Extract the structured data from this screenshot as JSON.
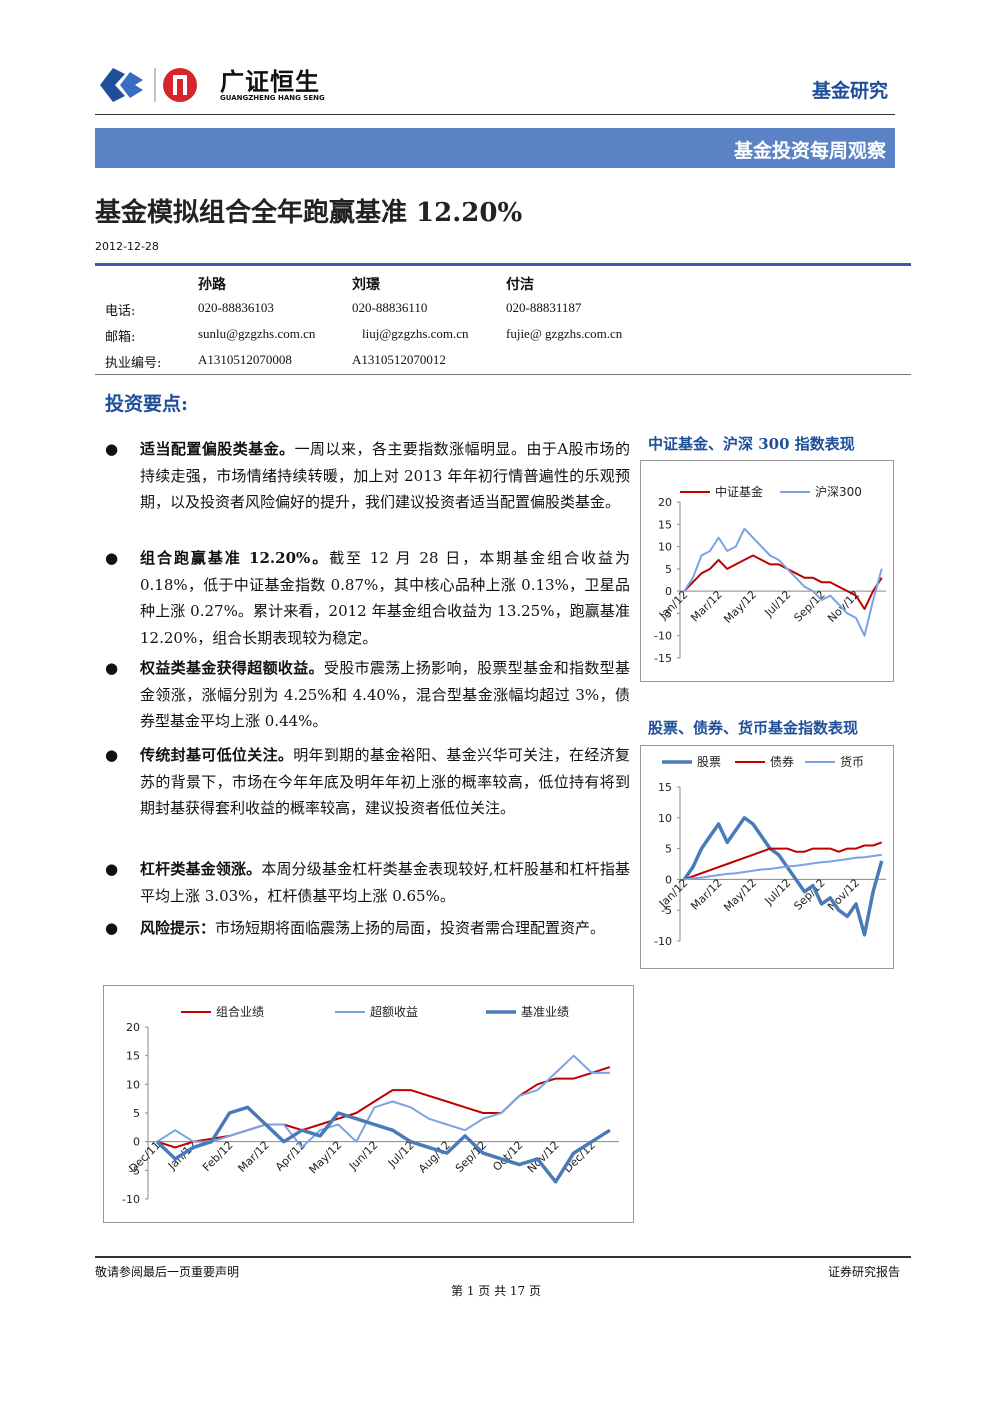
{
  "header": {
    "company": "广证恒生",
    "company_en": "GUANGZHENG HANG SENG",
    "section": "基金研究"
  },
  "banner": "基金投资每周观察",
  "title": "基金模拟组合全年跑赢基准 12.20%",
  "date": "2012-12-28",
  "authors": {
    "names": [
      "孙路",
      "刘璟",
      "付洁"
    ],
    "rows": [
      {
        "label": "电话:",
        "values": [
          "020-88836103",
          "020-88836110",
          "020-88831187"
        ]
      },
      {
        "label": "邮箱:",
        "values": [
          "sunlu@gzgzhs.com.cn",
          "liuj@gzgzhs.com.cn",
          "fujie@ gzgzhs.com.cn"
        ]
      },
      {
        "label": "执业编号:",
        "values": [
          "A1310512070008",
          "A1310512070012"
        ]
      }
    ]
  },
  "key_points": {
    "heading": "投资要点:",
    "items": [
      {
        "lead": "适当配置偏股类基金。",
        "text": "一周以来，各主要指数涨幅明显。由于A股市场的持续走强，市场情绪持续转暖，加上对 2013 年年初行情普遍性的乐观预期，以及投资者风险偏好的提升，我们建议投资者适当配置偏股类基金。"
      },
      {
        "lead": "组合跑赢基准 12.20%。",
        "text": "截至 12 月 28 日，本期基金组合收益为 0.18%，低于中证基金指数 0.87%，其中核心品种上涨 0.13%，卫星品种上涨 0.27%。累计来看，2012 年基金组合收益为 13.25%，跑赢基准 12.20%，组合长期表现较为稳定。"
      },
      {
        "lead": "权益类基金获得超额收益。",
        "text": "受股市震荡上扬影响，股票型基金和指数型基金领涨，涨幅分别为 4.25%和 4.40%，混合型基金涨幅均超过 3%，债券型基金平均上涨 0.44%。"
      },
      {
        "lead": "传统封基可低位关注。",
        "text": "明年到期的基金裕阳、基金兴华可关注，在经济复苏的背景下，市场在今年年底及明年年初上涨的概率较高，低位持有将到期封基获得套利收益的概率较高，建议投资者低位关注。"
      },
      {
        "lead": "杠杆类基金领涨。",
        "text": "本周分级基金杠杆类基金表现较好,杠杆股基和杠杆指基平均上涨 3.03%，杠杆债基平均上涨 0.65%。"
      },
      {
        "lead": "风险提示：",
        "text": "市场短期将面临震荡上扬的局面，投资者需合理配置资产。"
      }
    ]
  },
  "chart_data": [
    {
      "type": "line",
      "title": "中证基金、沪深 300 指数表现",
      "categories": [
        "Jan/12",
        null,
        null,
        null,
        "Mar/12",
        null,
        null,
        null,
        "May/12",
        null,
        null,
        null,
        "Jul/12",
        null,
        null,
        null,
        "Sep/12",
        null,
        null,
        null,
        "Nov/12",
        null,
        null,
        null
      ],
      "ylim": [
        -15,
        20
      ],
      "yticks": [
        -15,
        -10,
        -5,
        0,
        5,
        10,
        15,
        20
      ],
      "series": [
        {
          "name": "中证基金",
          "color": "#c00000",
          "width": 2,
          "values": [
            0,
            2,
            4,
            5,
            7,
            5,
            6,
            7,
            8,
            7,
            6,
            6,
            5,
            4,
            3,
            3,
            2,
            2,
            1,
            0,
            -1,
            -4,
            0,
            3
          ]
        },
        {
          "name": "沪深300",
          "color": "#7aa3e5",
          "width": 2,
          "values": [
            0,
            3,
            8,
            9,
            12,
            9,
            10,
            14,
            12,
            10,
            8,
            7,
            5,
            3,
            1,
            0,
            -2,
            -1,
            -3,
            -5,
            -6,
            -10,
            -2,
            5
          ]
        }
      ]
    },
    {
      "type": "line",
      "title": "股票、债券、货币基金指数表现",
      "categories": [
        "Jan/12",
        null,
        null,
        null,
        "Mar/12",
        null,
        null,
        null,
        "May/12",
        null,
        null,
        null,
        "Jul/12",
        null,
        null,
        null,
        "Sep/12",
        null,
        null,
        null,
        "Nov/12",
        null,
        null,
        null
      ],
      "ylim": [
        -10,
        15
      ],
      "yticks": [
        -10,
        -5,
        0,
        5,
        10,
        15
      ],
      "series": [
        {
          "name": "股票",
          "color": "#4a7ab8",
          "width": 3.5,
          "values": [
            0,
            2,
            5,
            7,
            9,
            6,
            8,
            10,
            9,
            7,
            5,
            4,
            2,
            0,
            -2,
            -1,
            -4,
            -3,
            -5,
            -6,
            -4,
            -9,
            -2,
            3
          ]
        },
        {
          "name": "债券",
          "color": "#c00000",
          "width": 2,
          "values": [
            0,
            0.5,
            1,
            1.5,
            2,
            2.5,
            3,
            3.5,
            4,
            4.5,
            5,
            5,
            5,
            4.5,
            4.5,
            5,
            5,
            5,
            4.5,
            5,
            5,
            5.5,
            5.5,
            6
          ]
        },
        {
          "name": "货币",
          "color": "#7aa3e5",
          "width": 2,
          "values": [
            0,
            0.2,
            0.3,
            0.5,
            0.7,
            0.9,
            1,
            1.2,
            1.4,
            1.6,
            1.7,
            1.9,
            2.1,
            2.2,
            2.4,
            2.6,
            2.8,
            2.9,
            3.1,
            3.3,
            3.5,
            3.6,
            3.8,
            4
          ]
        }
      ]
    },
    {
      "type": "line",
      "categories": [
        "Dec/11",
        null,
        "Jan/12",
        null,
        "Feb/12",
        null,
        "Mar/12",
        null,
        "Apr/12",
        null,
        "May/12",
        null,
        "Jun/12",
        null,
        "Jul/12",
        null,
        "Aug/12",
        null,
        "Sep/12",
        null,
        "Oct/12",
        null,
        "Nov/12",
        null,
        "Dec/12",
        null
      ],
      "ylim": [
        -10,
        20
      ],
      "yticks": [
        -10,
        -5,
        0,
        5,
        10,
        15,
        20
      ],
      "series": [
        {
          "name": "组合业绩",
          "color": "#c00000",
          "width": 2,
          "values": [
            0,
            -1,
            0,
            0.5,
            1,
            2,
            3,
            3,
            2,
            3,
            4,
            5,
            7,
            9,
            9,
            8,
            7,
            6,
            5,
            5,
            8,
            10,
            11,
            11,
            12,
            13
          ]
        },
        {
          "name": "超额收益",
          "color": "#7aa3e5",
          "width": 2,
          "values": [
            0,
            2,
            0,
            0,
            1,
            2,
            3,
            3,
            -1,
            2,
            3,
            0,
            6,
            7,
            6,
            4,
            3,
            2,
            4,
            5,
            8,
            9,
            12,
            15,
            12,
            12
          ]
        },
        {
          "name": "基准业绩",
          "color": "#4a7ab8",
          "width": 3.5,
          "values": [
            0,
            -3,
            -1,
            0,
            5,
            6,
            3,
            0,
            2,
            1,
            5,
            4,
            3,
            2,
            0,
            -1,
            -2,
            1,
            -2,
            -3,
            -4,
            -3,
            -7,
            -2,
            0,
            2
          ]
        }
      ]
    }
  ],
  "footer": {
    "left": "敬请参阅最后一页重要声明",
    "right": "证券研究报告",
    "page": "第 1 页 共 17 页"
  }
}
